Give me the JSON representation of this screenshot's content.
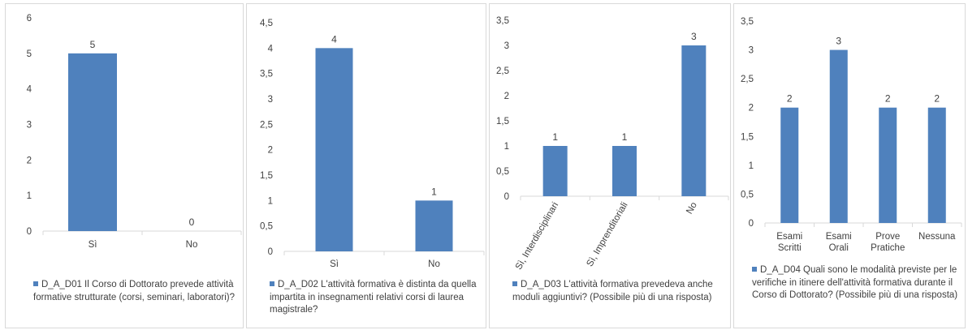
{
  "colors": {
    "bar": "#4f81bd",
    "axis": "#d9d9d9",
    "text": "#404040"
  },
  "chart_data": [
    {
      "type": "bar",
      "categories": [
        "Sì",
        "No"
      ],
      "values": [
        5,
        0
      ],
      "series": [
        {
          "name": "D_A_D01 Il Corso di Dottorato prevede attività formative strutturate (corsi, seminari, laboratori)?",
          "values": [
            5,
            0
          ]
        }
      ],
      "ylim": [
        0,
        6
      ],
      "yticks": [
        "0",
        "1",
        "2",
        "3",
        "4",
        "5",
        "6"
      ],
      "grid": false,
      "legend_position": "bottom",
      "data_labels": true
    },
    {
      "type": "bar",
      "categories": [
        "Sì",
        "No"
      ],
      "values": [
        4,
        1
      ],
      "series": [
        {
          "name": "D_A_D02 L'attività formativa è distinta da quella impartita in insegnamenti relativi corsi di laurea magistrale?",
          "values": [
            4,
            1
          ]
        }
      ],
      "ylim": [
        0,
        4.5
      ],
      "yticks": [
        "0",
        "0,5",
        "1",
        "1,5",
        "2",
        "2,5",
        "3",
        "3,5",
        "4",
        "4,5"
      ],
      "grid": false,
      "legend_position": "bottom",
      "data_labels": true
    },
    {
      "type": "bar",
      "categories": [
        "Sì, Interdisciplinari",
        "Sì, Imprenditoriali",
        "No"
      ],
      "values": [
        1,
        1,
        3
      ],
      "series": [
        {
          "name": "D_A_D03 L'attività formativa prevedeva anche moduli aggiuntivi? (Possibile più di una risposta)",
          "values": [
            1,
            1,
            3
          ]
        }
      ],
      "ylim": [
        0,
        3.5
      ],
      "yticks": [
        "0",
        "0,5",
        "1",
        "1,5",
        "2",
        "2,5",
        "3",
        "3,5"
      ],
      "grid": false,
      "legend_position": "bottom",
      "data_labels": true,
      "rotated_category_labels": true
    },
    {
      "type": "bar",
      "categories": [
        "Esami Scritti",
        "Esami Orali",
        "Prove Pratiche",
        "Nessuna"
      ],
      "values": [
        2,
        3,
        2,
        2
      ],
      "series": [
        {
          "name": "D_A_D04 Quali sono le modalità previste per le verifiche in itinere dell'attività formativa durante il Corso di Dottorato? (Possibile più di una risposta)",
          "values": [
            2,
            3,
            2,
            2
          ]
        }
      ],
      "ylim": [
        0,
        3.5
      ],
      "yticks": [
        "0",
        "0,5",
        "1",
        "1,5",
        "2",
        "2,5",
        "3",
        "3,5"
      ],
      "grid": false,
      "legend_position": "bottom",
      "data_labels": true
    }
  ]
}
